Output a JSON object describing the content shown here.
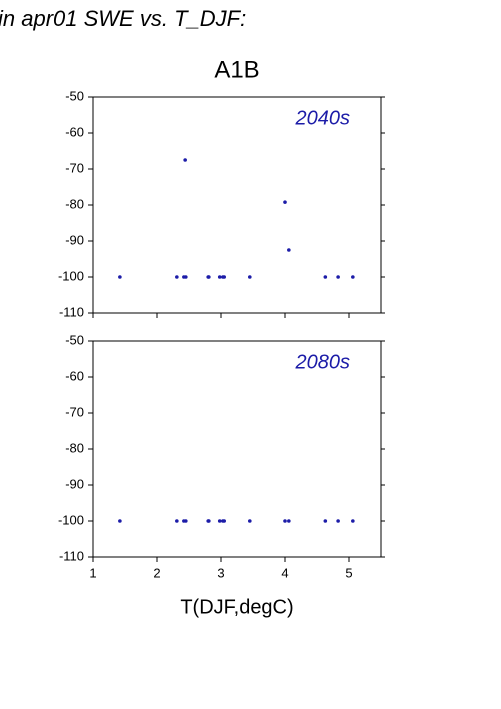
{
  "heading": "in apr01 SWE vs. T_DJF:",
  "chart_data": [
    {
      "type": "scatter",
      "title": "A1B",
      "annotation": "2040s",
      "color": "#1c1ca8",
      "x": [
        1.42,
        2.31,
        2.42,
        2.45,
        2.44,
        2.8,
        2.81,
        2.98,
        3.03,
        3.05,
        3.45,
        4.0,
        4.06,
        4.63,
        4.83,
        5.06
      ],
      "y": [
        -100,
        -100,
        -100,
        -100,
        -67.5,
        -100,
        -100,
        -100,
        -100,
        -100,
        -100,
        -79.2,
        -92.5,
        -100,
        -100,
        -100
      ],
      "xlim": [
        1,
        5.5
      ],
      "ylim": [
        -110,
        -50
      ],
      "xticks": [
        1,
        2,
        3,
        4,
        5
      ],
      "xtick_labels": false,
      "yticks": [
        -110,
        -100,
        -90,
        -80,
        -70,
        -60,
        -50
      ]
    },
    {
      "type": "scatter",
      "annotation": "2080s",
      "color": "#1c1ca8",
      "xlabel": "T(DJF,degC)",
      "x": [
        1.42,
        2.31,
        2.42,
        2.45,
        2.8,
        2.81,
        2.98,
        3.03,
        3.05,
        3.45,
        4.0,
        4.06,
        4.63,
        4.83,
        5.06
      ],
      "y": [
        -100,
        -100,
        -100,
        -100,
        -100,
        -100,
        -100,
        -100,
        -100,
        -100,
        -100,
        -100,
        -100,
        -100,
        -100
      ],
      "xlim": [
        1,
        5.5
      ],
      "ylim": [
        -110,
        -50
      ],
      "xticks": [
        1,
        2,
        3,
        4,
        5
      ],
      "xtick_labels": true,
      "yticks": [
        -110,
        -100,
        -90,
        -80,
        -70,
        -60,
        -50
      ]
    }
  ]
}
